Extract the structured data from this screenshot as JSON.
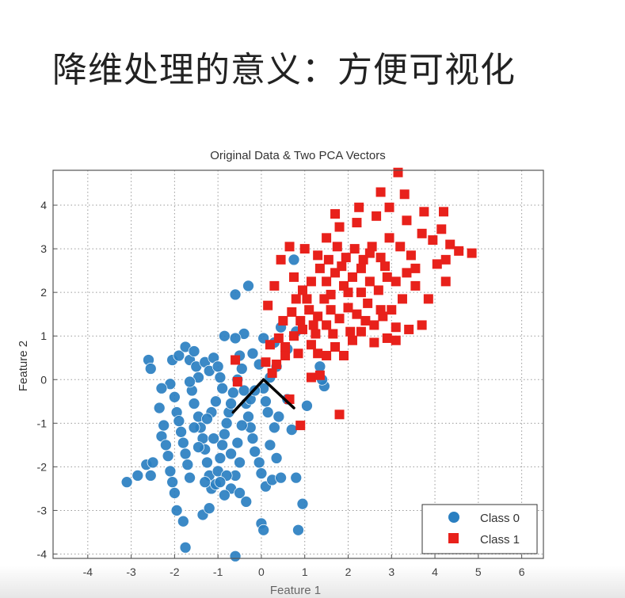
{
  "slide": {
    "title": "降维处理的意义：方便可视化"
  },
  "chart_data": {
    "type": "scatter",
    "title": "Original Data & Two PCA Vectors",
    "xlabel": "Feature 1",
    "ylabel": "Feature 2",
    "xlim": [
      -4.8,
      6.5
    ],
    "ylim": [
      -4.1,
      4.8
    ],
    "x_ticks": [
      -4,
      -3,
      -2,
      -1,
      0,
      1,
      2,
      3,
      4,
      5,
      6
    ],
    "y_ticks": [
      -4,
      -3,
      -2,
      -1,
      0,
      1,
      2,
      3,
      4
    ],
    "grid": true,
    "legend_position": "lower-right",
    "series": [
      {
        "name": "Class 0",
        "marker": "circle",
        "color": "#2a7fc1",
        "points": [
          [
            -3.1,
            -2.35
          ],
          [
            -2.85,
            -2.2
          ],
          [
            -2.65,
            -1.95
          ],
          [
            -2.55,
            -2.2
          ],
          [
            -2.5,
            -1.9
          ],
          [
            -2.6,
            0.45
          ],
          [
            -2.55,
            0.25
          ],
          [
            -2.3,
            -1.3
          ],
          [
            -2.2,
            -1.5
          ],
          [
            -2.15,
            -1.75
          ],
          [
            -2.1,
            -2.1
          ],
          [
            -2.05,
            -2.35
          ],
          [
            -2.0,
            -2.6
          ],
          [
            -1.95,
            -3.0
          ],
          [
            -1.8,
            -3.25
          ],
          [
            -1.75,
            -3.85
          ],
          [
            -2.1,
            -0.1
          ],
          [
            -2.0,
            -0.4
          ],
          [
            -1.95,
            -0.75
          ],
          [
            -1.9,
            -0.95
          ],
          [
            -1.85,
            -1.2
          ],
          [
            -1.8,
            -1.45
          ],
          [
            -1.75,
            -1.7
          ],
          [
            -1.7,
            -1.95
          ],
          [
            -1.65,
            -2.25
          ],
          [
            -2.05,
            0.45
          ],
          [
            -1.9,
            0.55
          ],
          [
            -1.75,
            0.75
          ],
          [
            -1.65,
            0.45
          ],
          [
            -1.55,
            0.65
          ],
          [
            -1.5,
            0.3
          ],
          [
            -1.45,
            0.05
          ],
          [
            -1.6,
            -0.25
          ],
          [
            -1.55,
            -0.55
          ],
          [
            -1.45,
            -0.85
          ],
          [
            -1.4,
            -1.1
          ],
          [
            -1.35,
            -1.35
          ],
          [
            -1.3,
            -1.6
          ],
          [
            -1.25,
            -1.9
          ],
          [
            -1.2,
            -2.2
          ],
          [
            -1.15,
            -2.5
          ],
          [
            -1.35,
            -3.1
          ],
          [
            -1.2,
            -2.95
          ],
          [
            -1.05,
            -2.4
          ],
          [
            -1.0,
            -2.1
          ],
          [
            -0.95,
            -1.8
          ],
          [
            -0.9,
            -1.5
          ],
          [
            -0.85,
            -1.25
          ],
          [
            -0.8,
            -1.0
          ],
          [
            -0.75,
            -0.75
          ],
          [
            -0.7,
            -0.55
          ],
          [
            -0.65,
            -0.3
          ],
          [
            -1.3,
            0.4
          ],
          [
            -1.2,
            0.2
          ],
          [
            -1.1,
            0.5
          ],
          [
            -1.0,
            0.3
          ],
          [
            -0.95,
            0.05
          ],
          [
            -0.9,
            -0.2
          ],
          [
            -1.05,
            -0.5
          ],
          [
            -1.15,
            -0.75
          ],
          [
            -1.25,
            -0.9
          ],
          [
            -0.6,
            1.95
          ],
          [
            -0.3,
            2.15
          ],
          [
            -0.4,
            1.05
          ],
          [
            -0.6,
            0.95
          ],
          [
            -0.85,
            1.0
          ],
          [
            -0.5,
            0.55
          ],
          [
            -0.45,
            0.25
          ],
          [
            -0.55,
            0.0
          ],
          [
            -0.4,
            -0.25
          ],
          [
            -0.35,
            -0.55
          ],
          [
            -0.3,
            -0.85
          ],
          [
            -0.25,
            -1.1
          ],
          [
            -0.2,
            -1.35
          ],
          [
            -0.15,
            -1.65
          ],
          [
            -0.05,
            -1.9
          ],
          [
            0.0,
            -2.15
          ],
          [
            0.1,
            -2.45
          ],
          [
            0.25,
            -2.3
          ],
          [
            0.45,
            -2.25
          ],
          [
            0.8,
            -2.25
          ],
          [
            -0.5,
            -1.9
          ],
          [
            -0.6,
            -2.2
          ],
          [
            -0.7,
            -2.5
          ],
          [
            -0.8,
            -2.2
          ],
          [
            -0.5,
            -2.6
          ],
          [
            -0.35,
            -2.8
          ],
          [
            -0.85,
            -2.65
          ],
          [
            -0.95,
            -2.35
          ],
          [
            0.0,
            -3.3
          ],
          [
            0.05,
            -3.45
          ],
          [
            0.85,
            -3.45
          ],
          [
            0.95,
            -2.85
          ],
          [
            -0.6,
            -4.05
          ],
          [
            0.7,
            -1.15
          ],
          [
            1.05,
            -0.6
          ],
          [
            1.45,
            -0.15
          ],
          [
            1.4,
            0.0
          ],
          [
            1.35,
            0.3
          ],
          [
            0.6,
            -0.45
          ],
          [
            0.4,
            -0.85
          ],
          [
            0.3,
            -1.1
          ],
          [
            0.15,
            -0.75
          ],
          [
            0.1,
            -0.5
          ],
          [
            0.05,
            -0.2
          ],
          [
            0.2,
            0.05
          ],
          [
            0.35,
            0.3
          ],
          [
            -0.05,
            0.35
          ],
          [
            -0.2,
            0.6
          ],
          [
            0.3,
            0.85
          ],
          [
            0.05,
            0.95
          ],
          [
            0.45,
            1.2
          ],
          [
            0.6,
            0.7
          ],
          [
            0.8,
            1.1
          ],
          [
            0.75,
            2.75
          ],
          [
            -2.35,
            -0.65
          ],
          [
            -2.25,
            -1.05
          ],
          [
            -1.65,
            -0.05
          ],
          [
            -1.55,
            -1.1
          ],
          [
            -1.45,
            -1.55
          ],
          [
            -1.1,
            -1.35
          ],
          [
            -0.55,
            -1.45
          ],
          [
            -0.45,
            -1.05
          ],
          [
            -0.25,
            -0.45
          ],
          [
            -0.15,
            -0.25
          ],
          [
            0.2,
            -1.5
          ],
          [
            0.35,
            -1.8
          ],
          [
            -0.7,
            -1.7
          ],
          [
            -1.3,
            -2.35
          ],
          [
            -2.3,
            -0.2
          ]
        ]
      },
      {
        "name": "Class 1",
        "marker": "square",
        "color": "#e8211b",
        "points": [
          [
            -0.6,
            0.45
          ],
          [
            -0.55,
            -0.05
          ],
          [
            0.1,
            0.4
          ],
          [
            0.25,
            0.15
          ],
          [
            0.35,
            0.35
          ],
          [
            0.55,
            0.55
          ],
          [
            0.65,
            -0.45
          ],
          [
            0.9,
            -1.05
          ],
          [
            1.8,
            -0.8
          ],
          [
            1.15,
            0.05
          ],
          [
            1.35,
            0.1
          ],
          [
            0.2,
            0.8
          ],
          [
            0.4,
            0.95
          ],
          [
            0.55,
            0.75
          ],
          [
            0.75,
            1.0
          ],
          [
            0.95,
            1.15
          ],
          [
            1.15,
            0.8
          ],
          [
            1.3,
            0.6
          ],
          [
            1.5,
            0.55
          ],
          [
            1.7,
            0.75
          ],
          [
            1.9,
            0.55
          ],
          [
            2.1,
            0.9
          ],
          [
            2.3,
            1.1
          ],
          [
            2.6,
            0.85
          ],
          [
            2.9,
            0.95
          ],
          [
            3.1,
            1.2
          ],
          [
            3.4,
            1.15
          ],
          [
            3.7,
            1.25
          ],
          [
            0.15,
            1.7
          ],
          [
            0.5,
            1.35
          ],
          [
            0.7,
            1.55
          ],
          [
            0.9,
            1.35
          ],
          [
            1.1,
            1.6
          ],
          [
            1.3,
            1.45
          ],
          [
            1.5,
            1.25
          ],
          [
            1.65,
            1.05
          ],
          [
            1.8,
            1.4
          ],
          [
            2.0,
            1.65
          ],
          [
            2.2,
            1.5
          ],
          [
            2.4,
            1.35
          ],
          [
            2.6,
            1.25
          ],
          [
            2.8,
            1.45
          ],
          [
            3.0,
            1.6
          ],
          [
            0.3,
            2.15
          ],
          [
            0.45,
            2.75
          ],
          [
            0.75,
            2.35
          ],
          [
            0.95,
            2.05
          ],
          [
            1.15,
            2.25
          ],
          [
            1.35,
            2.55
          ],
          [
            1.5,
            2.25
          ],
          [
            1.7,
            2.45
          ],
          [
            1.9,
            2.15
          ],
          [
            2.1,
            2.35
          ],
          [
            2.3,
            2.0
          ],
          [
            2.5,
            2.25
          ],
          [
            2.7,
            2.05
          ],
          [
            2.9,
            2.35
          ],
          [
            3.1,
            2.25
          ],
          [
            3.35,
            2.45
          ],
          [
            3.55,
            2.55
          ],
          [
            3.85,
            1.85
          ],
          [
            4.05,
            2.65
          ],
          [
            4.25,
            2.75
          ],
          [
            4.55,
            2.95
          ],
          [
            4.85,
            2.9
          ],
          [
            1.3,
            2.85
          ],
          [
            1.55,
            2.75
          ],
          [
            1.75,
            3.05
          ],
          [
            1.95,
            2.8
          ],
          [
            2.15,
            3.0
          ],
          [
            2.35,
            2.75
          ],
          [
            2.55,
            3.05
          ],
          [
            2.75,
            2.8
          ],
          [
            2.95,
            3.25
          ],
          [
            3.2,
            3.05
          ],
          [
            3.45,
            2.85
          ],
          [
            3.7,
            3.35
          ],
          [
            3.95,
            3.2
          ],
          [
            4.15,
            3.45
          ],
          [
            4.35,
            3.1
          ],
          [
            1.5,
            3.25
          ],
          [
            1.8,
            3.5
          ],
          [
            2.2,
            3.6
          ],
          [
            2.65,
            3.75
          ],
          [
            2.95,
            3.95
          ],
          [
            3.35,
            3.65
          ],
          [
            3.75,
            3.85
          ],
          [
            4.2,
            3.85
          ],
          [
            2.75,
            4.3
          ],
          [
            3.15,
            4.75
          ],
          [
            3.3,
            4.25
          ],
          [
            1.7,
            3.8
          ],
          [
            2.25,
            3.95
          ],
          [
            1.0,
            3.0
          ],
          [
            0.65,
            3.05
          ],
          [
            1.05,
            1.85
          ],
          [
            1.25,
            1.05
          ],
          [
            1.6,
            1.95
          ],
          [
            2.05,
            1.1
          ],
          [
            2.45,
            1.75
          ],
          [
            3.25,
            1.85
          ],
          [
            3.55,
            2.15
          ],
          [
            4.25,
            2.25
          ],
          [
            2.85,
            2.6
          ],
          [
            1.85,
            2.6
          ],
          [
            2.3,
            2.55
          ],
          [
            0.85,
            0.6
          ],
          [
            1.45,
            1.85
          ],
          [
            2.75,
            1.6
          ],
          [
            3.1,
            0.9
          ],
          [
            0.8,
            1.85
          ],
          [
            1.2,
            1.25
          ],
          [
            1.6,
            1.6
          ],
          [
            2.0,
            2.0
          ],
          [
            2.5,
            2.9
          ]
        ]
      }
    ],
    "pca_vectors": [
      {
        "from": [
          -0.65,
          -0.75
        ],
        "to": [
          0.05,
          0.0
        ]
      },
      {
        "from": [
          0.05,
          0.0
        ],
        "to": [
          0.75,
          -0.65
        ]
      }
    ]
  }
}
